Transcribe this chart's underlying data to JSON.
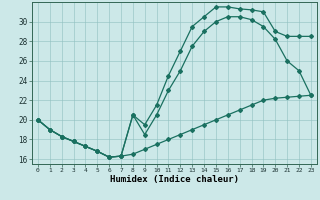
{
  "xlabel": "Humidex (Indice chaleur)",
  "bg_color": "#cce8e8",
  "line_color": "#1a7060",
  "xlim": [
    -0.5,
    23.5
  ],
  "ylim": [
    15.5,
    32.0
  ],
  "yticks": [
    16,
    18,
    20,
    22,
    24,
    26,
    28,
    30
  ],
  "xticks": [
    0,
    1,
    2,
    3,
    4,
    5,
    6,
    7,
    8,
    9,
    10,
    11,
    12,
    13,
    14,
    15,
    16,
    17,
    18,
    19,
    20,
    21,
    22,
    23
  ],
  "line1_x": [
    0,
    1,
    2,
    3,
    4,
    5,
    6,
    7,
    8,
    9,
    10,
    11,
    12,
    13,
    14,
    15,
    16,
    17,
    18,
    19,
    20,
    21,
    22,
    23
  ],
  "line1_y": [
    20,
    19,
    18.3,
    17.8,
    17.3,
    16.8,
    16.2,
    16.3,
    16.5,
    17.0,
    17.5,
    18.0,
    18.5,
    19.0,
    19.5,
    20.0,
    20.5,
    21.0,
    21.5,
    22.0,
    22.2,
    22.3,
    22.4,
    22.5
  ],
  "line2_x": [
    0,
    1,
    2,
    3,
    4,
    5,
    6,
    7,
    8,
    9,
    10,
    11,
    12,
    13,
    14,
    15,
    16,
    17,
    18,
    19,
    20,
    21,
    22,
    23
  ],
  "line2_y": [
    20,
    19,
    18.3,
    17.8,
    17.3,
    16.8,
    16.2,
    16.3,
    20.5,
    19.5,
    21.5,
    24.5,
    27.0,
    29.5,
    30.5,
    31.5,
    31.5,
    31.3,
    31.2,
    31.0,
    29.0,
    28.5,
    28.5,
    28.5
  ],
  "line3_x": [
    0,
    1,
    2,
    3,
    4,
    5,
    6,
    7,
    8,
    9,
    10,
    11,
    12,
    13,
    14,
    15,
    16,
    17,
    18,
    19,
    20,
    21,
    22,
    23
  ],
  "line3_y": [
    20,
    19,
    18.3,
    17.8,
    17.3,
    16.8,
    16.2,
    16.3,
    20.5,
    18.5,
    20.5,
    23.0,
    25.0,
    27.5,
    29.0,
    30.0,
    30.5,
    30.5,
    30.2,
    29.5,
    28.2,
    26.0,
    25.0,
    22.5
  ]
}
